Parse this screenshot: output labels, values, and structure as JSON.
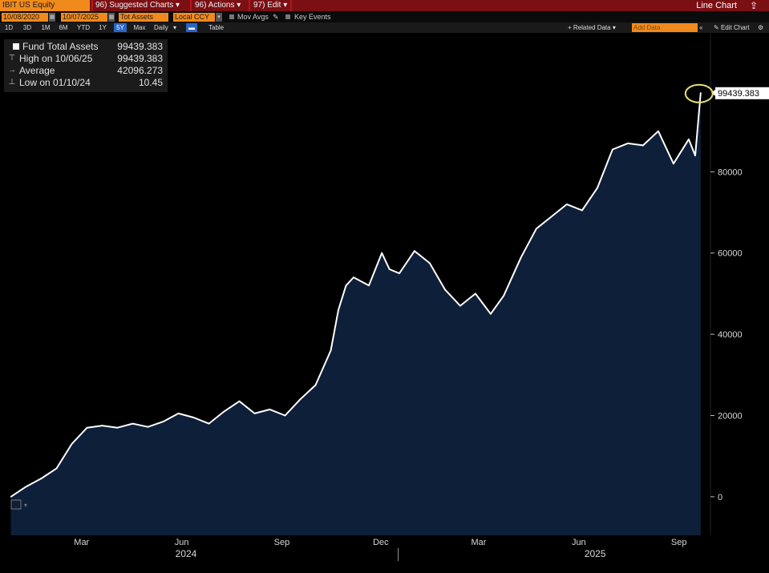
{
  "toolbar": {
    "ticker": "IBIT US Equity",
    "menu": [
      "96) Suggested Charts ▾",
      "96) Actions ▾",
      "97) Edit ▾"
    ],
    "title": "Line Chart",
    "export_icon": "export-icon"
  },
  "controls": {
    "start_date": "10/08/2020",
    "end_date": "10/07/2025",
    "field": "Tot Assets",
    "currency": "Local CCY",
    "mov_avgs": "Mov Avgs",
    "key_events": "Key Events"
  },
  "ranges": {
    "items": [
      "1D",
      "3D",
      "1M",
      "6M",
      "YTD",
      "1Y",
      "5Y",
      "Max"
    ],
    "active": "5Y",
    "frequency": "Daily",
    "table": "Table",
    "related": "+ Related Data ▾",
    "add_data": "Add Data",
    "edit_chart": "Edit Chart"
  },
  "legend": {
    "series": {
      "label": "Fund Total Assets",
      "value": "99439.383"
    },
    "high": {
      "label": "High on 10/06/25",
      "value": "99439.383"
    },
    "average": {
      "label": "Average",
      "value": "42096.273"
    },
    "low": {
      "label": "Low on 01/10/24",
      "value": "10.45"
    }
  },
  "chart_data": {
    "type": "area",
    "title": "",
    "series": [
      {
        "name": "Fund Total Assets",
        "x": [
          "2024-01-11",
          "2024-01-25",
          "2024-02-08",
          "2024-02-22",
          "2024-03-07",
          "2024-03-21",
          "2024-04-04",
          "2024-04-18",
          "2024-05-02",
          "2024-05-16",
          "2024-05-30",
          "2024-06-13",
          "2024-06-27",
          "2024-07-11",
          "2024-07-25",
          "2024-08-08",
          "2024-08-22",
          "2024-09-05",
          "2024-09-19",
          "2024-10-03",
          "2024-10-17",
          "2024-10-31",
          "2024-11-07",
          "2024-11-14",
          "2024-11-21",
          "2024-12-05",
          "2024-12-17",
          "2024-12-24",
          "2025-01-02",
          "2025-01-16",
          "2025-01-30",
          "2025-02-13",
          "2025-02-27",
          "2025-03-13",
          "2025-03-27",
          "2025-04-08",
          "2025-04-24",
          "2025-05-08",
          "2025-05-22",
          "2025-06-05",
          "2025-06-19",
          "2025-07-03",
          "2025-07-17",
          "2025-07-31",
          "2025-08-14",
          "2025-08-28",
          "2025-09-11",
          "2025-09-25",
          "2025-10-01",
          "2025-10-06"
        ],
        "values": [
          10.45,
          2500,
          4500,
          7000,
          13000,
          17000,
          17500,
          17000,
          18000,
          17200,
          18500,
          20500,
          19500,
          18000,
          21000,
          23500,
          20500,
          21500,
          20000,
          24000,
          27500,
          36000,
          46000,
          52000,
          54000,
          52000,
          60000,
          56000,
          55000,
          60500,
          57500,
          51000,
          47000,
          50000,
          45000,
          49500,
          59000,
          66000,
          69000,
          72000,
          70500,
          76000,
          85500,
          87000,
          86500,
          90000,
          82000,
          88000,
          84000,
          99439.383
        ]
      }
    ],
    "y_ticks": [
      "0",
      "20000",
      "40000",
      "60000",
      "80000"
    ],
    "ylim": [
      -9500,
      114000
    ],
    "x_tick_labels": [
      "Mar",
      "Jun",
      "Sep",
      "Dec",
      "Mar",
      "Jun",
      "Sep"
    ],
    "year_labels": [
      "2024",
      "2025"
    ],
    "last_value_label": "99439.383",
    "colors": {
      "line": "#ffffff",
      "fill": "#0e1f3a",
      "highlight": "#e8e07a"
    }
  }
}
